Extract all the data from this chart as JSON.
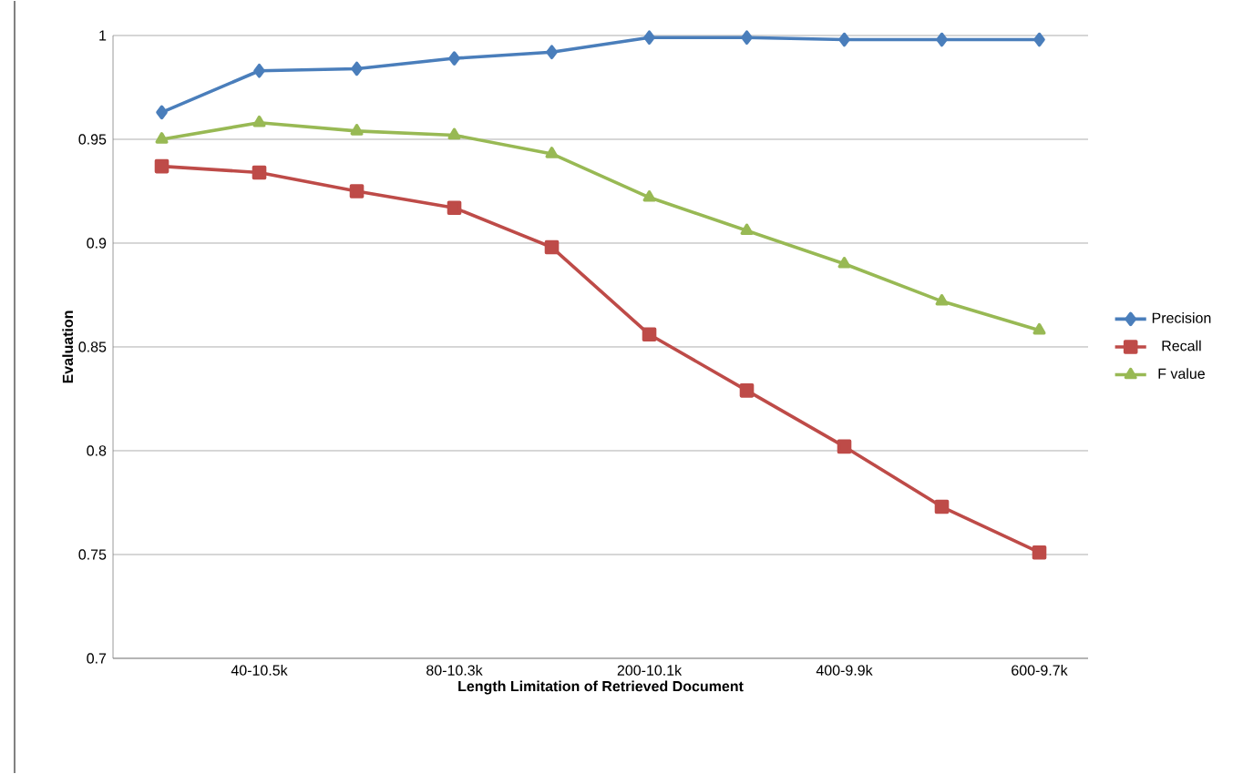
{
  "chart_data": {
    "type": "line",
    "xlabel": "Length Limitation of Retrieved Document",
    "ylabel": "Evaluation",
    "categories": [
      null,
      "40-10.5k",
      null,
      "80-10.3k",
      null,
      "200-10.1k",
      null,
      "400-9.9k",
      null,
      "600-9.7k"
    ],
    "series": [
      {
        "name": "Precision",
        "color": "#4a7ebb",
        "marker": "diamond",
        "values": [
          0.963,
          0.983,
          0.984,
          0.989,
          0.992,
          0.999,
          0.999,
          0.998,
          0.998,
          0.998
        ]
      },
      {
        "name": "Recall",
        "color": "#be4b48",
        "marker": "square",
        "values": [
          0.937,
          0.934,
          0.925,
          0.917,
          0.898,
          0.856,
          0.829,
          0.802,
          0.773,
          0.751
        ]
      },
      {
        "name": "F value",
        "color": "#98b954",
        "marker": "triangle",
        "values": [
          0.95,
          0.958,
          0.954,
          0.952,
          0.943,
          0.922,
          0.906,
          0.89,
          0.872,
          0.858
        ]
      }
    ],
    "ylim": [
      0.7,
      1
    ],
    "yticks": [
      0.7,
      0.75,
      0.8,
      0.85,
      0.9,
      0.95,
      1
    ],
    "grid": "y",
    "legend": "right",
    "line_style": "solid"
  }
}
